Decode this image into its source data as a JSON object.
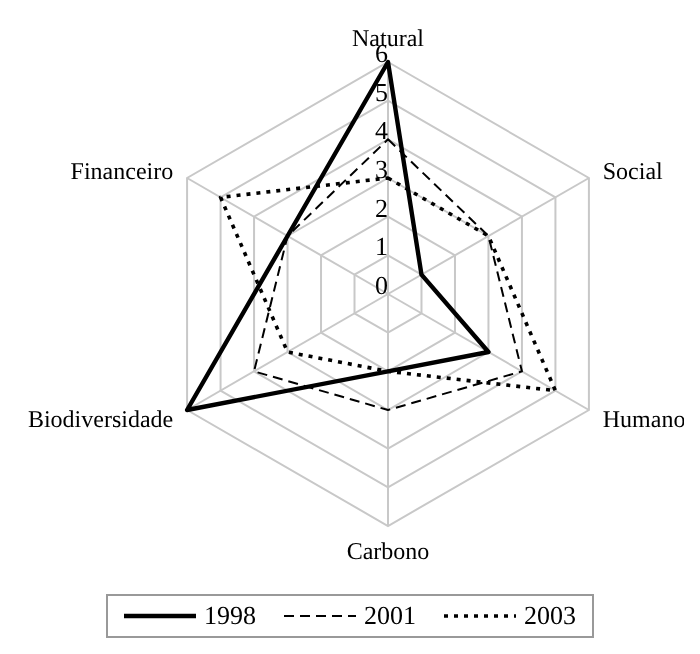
{
  "chart_data": {
    "type": "radar",
    "categories": [
      "Natural",
      "Social",
      "Humano",
      "Carbono",
      "Biodiversidade",
      "Financeiro"
    ],
    "series": [
      {
        "name": "1998",
        "color": "#000000",
        "line_style": "solid",
        "values": [
          6,
          1,
          3,
          2,
          6,
          3
        ]
      },
      {
        "name": "2001",
        "color": "#000000",
        "line_style": "dashed",
        "values": [
          4,
          3,
          4,
          3,
          4,
          3
        ]
      },
      {
        "name": "2003",
        "color": "#000000",
        "line_style": "dotted",
        "values": [
          3,
          3,
          5,
          2,
          3,
          5
        ]
      }
    ],
    "ylim": [
      0,
      6
    ],
    "yticks": [
      0,
      1,
      2,
      3,
      4,
      5,
      6
    ],
    "grid": true,
    "legend": "bottom",
    "marker": "none"
  }
}
